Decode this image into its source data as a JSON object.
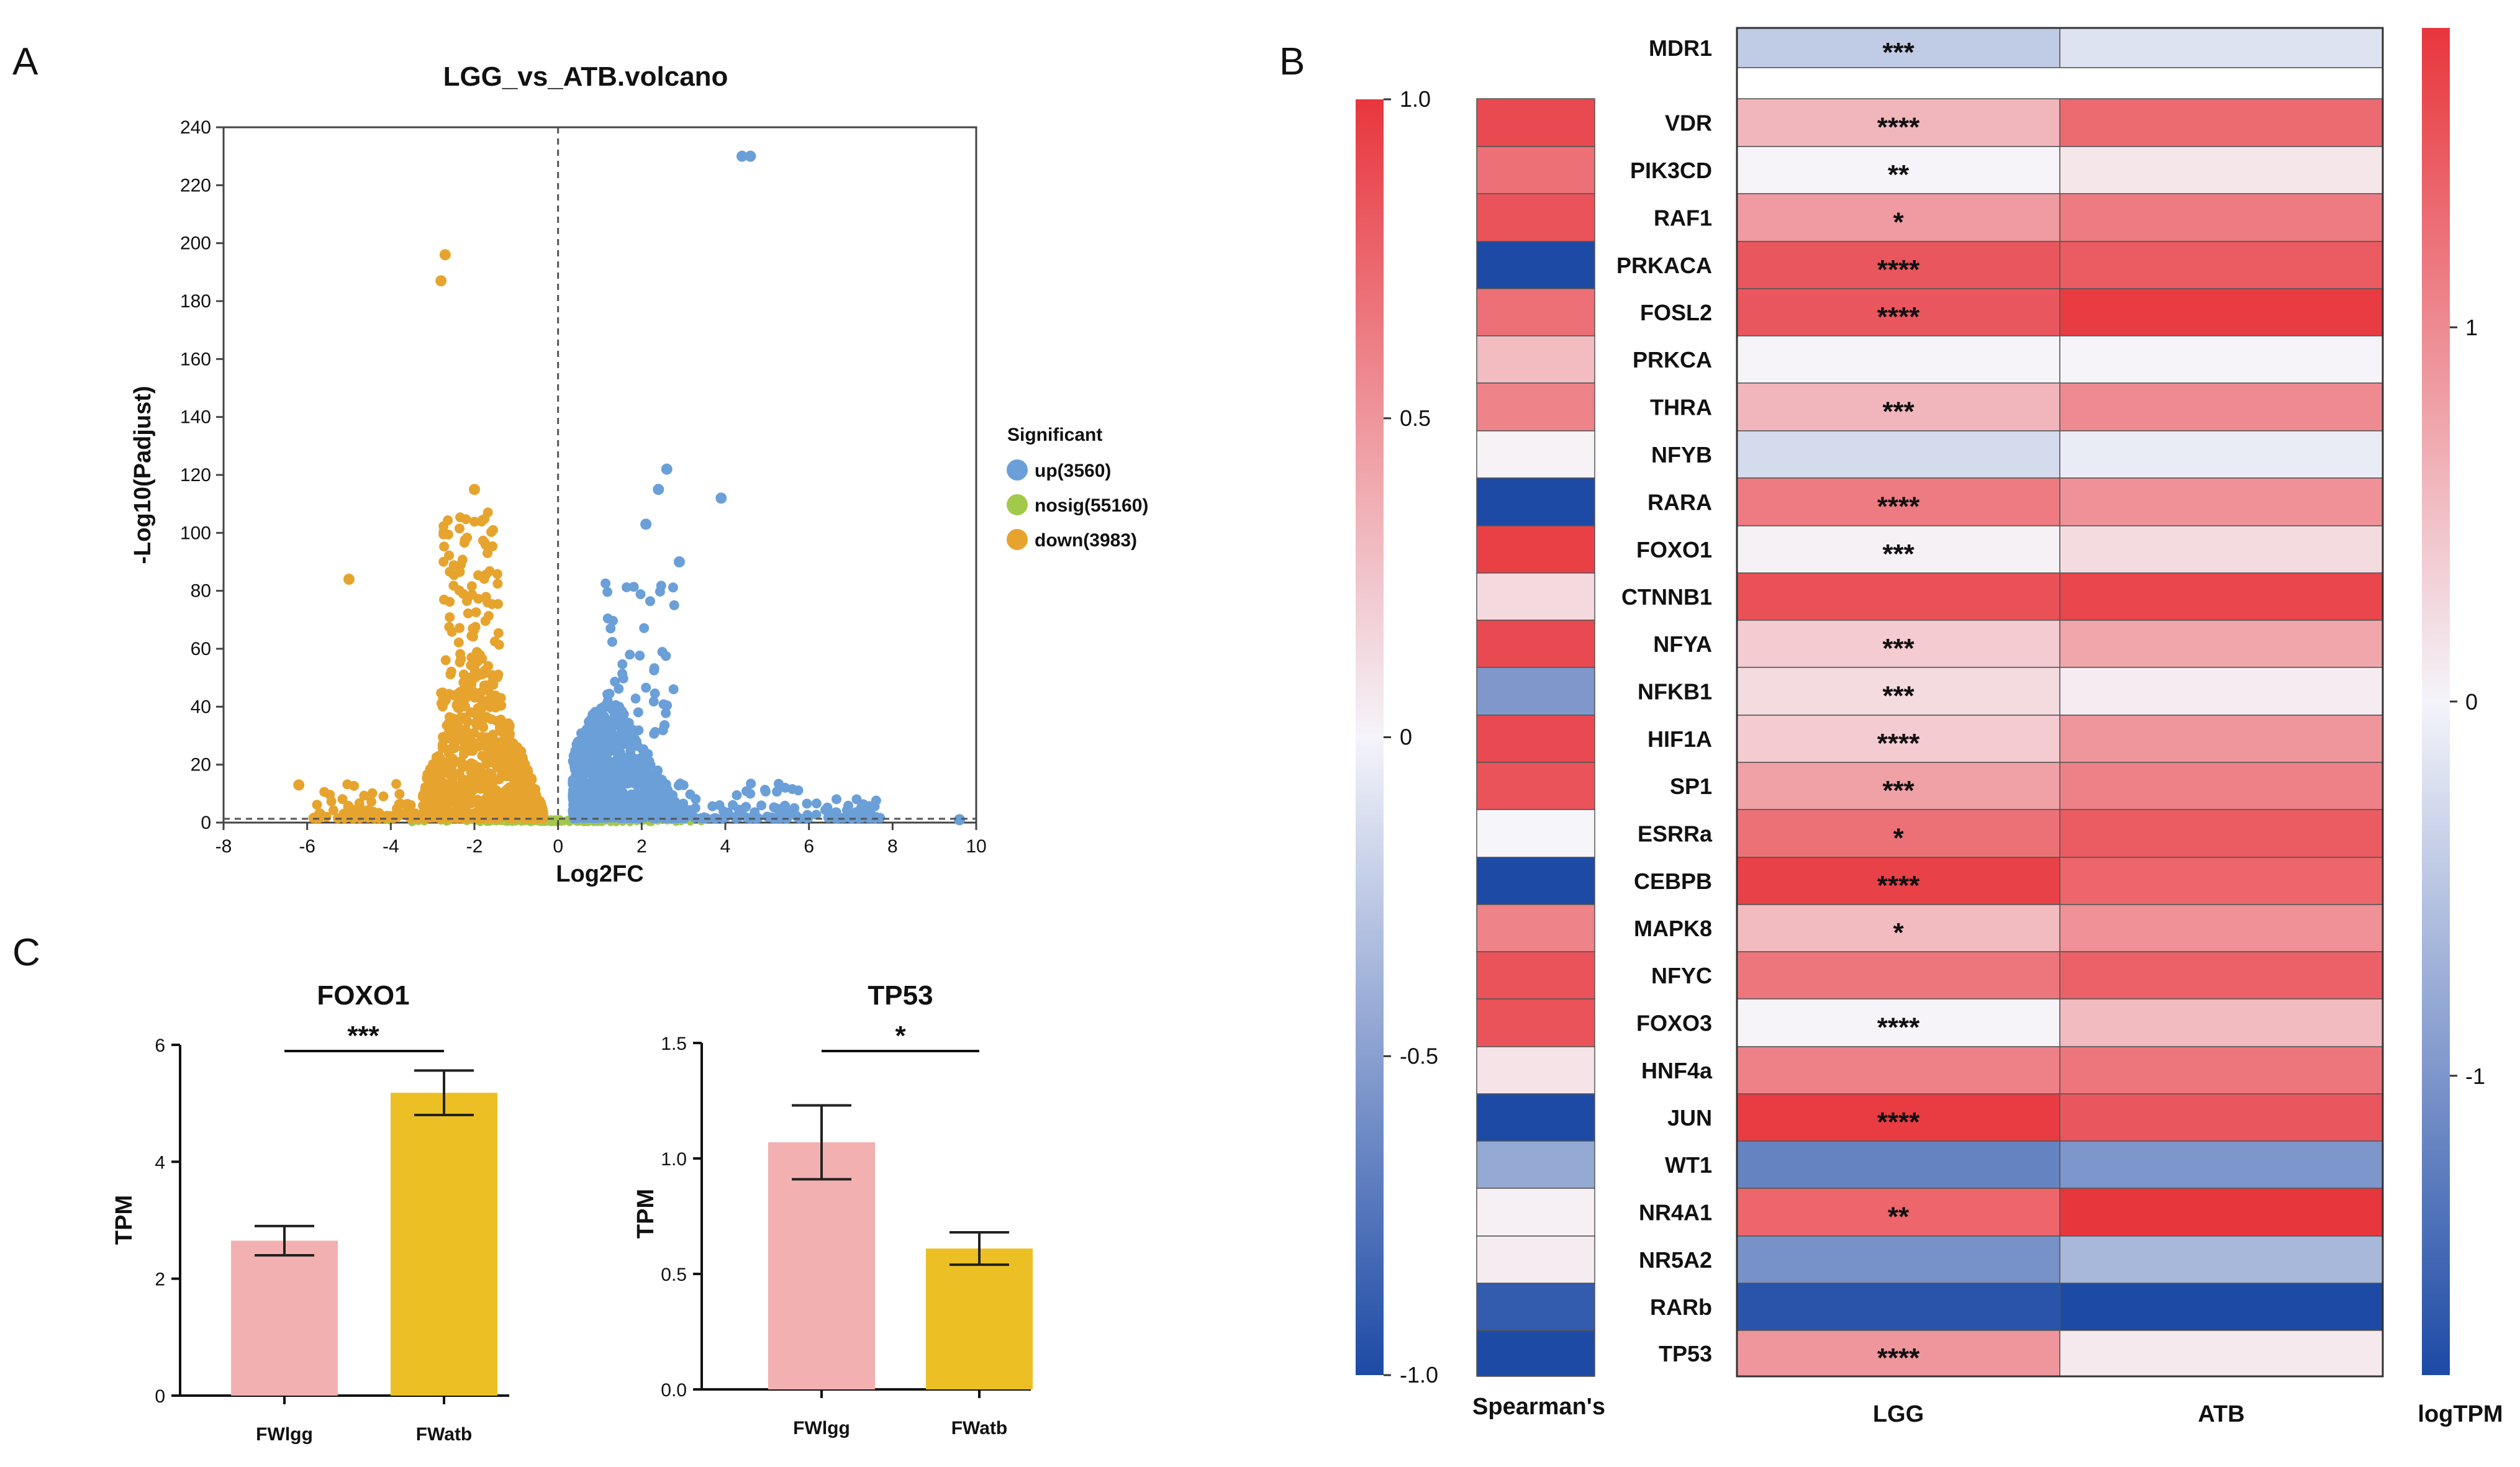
{
  "panels": {
    "a": "A",
    "b": "B",
    "c": "C"
  },
  "chart_data": [
    {
      "type": "scatter",
      "panel": "A",
      "title": "LGG_vs_ATB.volcano",
      "xlabel": "Log2FC",
      "ylabel": "-Log10(Padjust)",
      "xlim": [
        -8,
        10
      ],
      "ylim": [
        0,
        240
      ],
      "xticks": [
        -8,
        -6,
        -4,
        -2,
        0,
        2,
        4,
        6,
        8,
        10
      ],
      "yticks": [
        0,
        20,
        40,
        60,
        80,
        100,
        120,
        140,
        160,
        180,
        200,
        220,
        240
      ],
      "legend": {
        "title": "Significant",
        "position": "right",
        "items": [
          {
            "label": "up(3560)",
            "color": "#6b9fd8"
          },
          {
            "label": "nosig(55160)",
            "color": "#a3c94a"
          },
          {
            "label": "down(3983)",
            "color": "#e6a42e"
          }
        ]
      },
      "counts": {
        "up": 3560,
        "nosig": 55160,
        "down": 3983
      },
      "threshold_y": 1.3,
      "notable_points": {
        "up": [
          [
            4.4,
            230
          ],
          [
            4.6,
            230
          ],
          [
            2.6,
            122
          ],
          [
            2.4,
            115
          ],
          [
            3.9,
            112
          ],
          [
            2.1,
            103
          ],
          [
            2.9,
            90
          ],
          [
            9.6,
            1
          ]
        ],
        "down": [
          [
            -2.7,
            196
          ],
          [
            -2.8,
            187
          ],
          [
            -2.0,
            115
          ],
          [
            -5.0,
            84
          ],
          [
            -6.2,
            13
          ],
          [
            -5.7,
            3
          ]
        ]
      }
    },
    {
      "type": "heatmap",
      "panel": "B",
      "genes": [
        "MDR1",
        "VDR",
        "PIK3CD",
        "RAF1",
        "PRKACA",
        "FOSL2",
        "PRKCA",
        "THRA",
        "NFYB",
        "RARA",
        "FOXO1",
        "CTNNB1",
        "NFYA",
        "NFKB1",
        "HIF1A",
        "SP1",
        "ESRRa",
        "CEBPB",
        "MAPK8",
        "NFYC",
        "FOXO3",
        "HNF4a",
        "JUN",
        "WT1",
        "NR4A1",
        "NR5A2",
        "RARb",
        "TP53"
      ],
      "columns": [
        "LGG",
        "ATB"
      ],
      "spearman_label": "Spearman's",
      "spearman_values": [
        null,
        0.9,
        0.7,
        0.85,
        -1.0,
        0.7,
        0.3,
        0.6,
        0.02,
        -1.0,
        0.95,
        0.15,
        0.9,
        -0.55,
        0.9,
        0.85,
        0.0,
        -1.0,
        0.6,
        0.85,
        0.85,
        0.1,
        -1.0,
        -0.45,
        0.03,
        0.05,
        -0.9,
        -1.0
      ],
      "lgg_logtpm": [
        -0.45,
        0.6,
        0.02,
        0.85,
        1.5,
        1.5,
        0.02,
        0.6,
        -0.28,
        1.15,
        0.05,
        1.55,
        0.4,
        0.25,
        0.4,
        0.8,
        1.25,
        1.7,
        0.55,
        1.2,
        0.02,
        1.1,
        1.75,
        -1.2,
        1.35,
        -1.05,
        -1.7,
        0.9
      ],
      "atb_logtpm": [
        -0.2,
        1.3,
        0.15,
        1.15,
        1.45,
        1.75,
        0.02,
        1.0,
        -0.1,
        0.95,
        0.25,
        1.65,
        0.75,
        0.1,
        0.9,
        1.1,
        1.45,
        1.35,
        0.95,
        1.4,
        0.55,
        1.2,
        1.5,
        -1.0,
        1.8,
        -0.65,
        -1.8,
        0.12
      ],
      "significance": [
        "***",
        "****",
        "**",
        "*",
        "****",
        "****",
        "",
        "***",
        "",
        "****",
        "***",
        "",
        "***",
        "***",
        "****",
        "***",
        "*",
        "****",
        "*",
        "",
        "****",
        "",
        "****",
        "",
        "**",
        "",
        "",
        "****"
      ],
      "spearman_colorbar": {
        "ticks": [
          "1.0",
          "0.5",
          "0",
          "-0.5",
          "-1.0"
        ],
        "range": [
          -1.0,
          1.0
        ]
      },
      "logtpm_colorbar": {
        "label": "logTPM",
        "ticks": [
          "1",
          "0",
          "-1"
        ],
        "range": [
          -1.8,
          1.8
        ]
      }
    },
    {
      "type": "bar",
      "panel": "C1",
      "title": "FOXO1",
      "significance": "***",
      "categories": [
        "FWlgg",
        "FWatb"
      ],
      "values": [
        2.65,
        5.18
      ],
      "errors": [
        0.25,
        0.38
      ],
      "colors": [
        "#f3b0b0",
        "#ecc024"
      ],
      "ylabel": "TPM",
      "ylim": [
        0,
        6
      ],
      "yticks": [
        "0",
        "2",
        "4",
        "6"
      ]
    },
    {
      "type": "bar",
      "panel": "C2",
      "title": "TP53",
      "significance": "*",
      "categories": [
        "FWlgg",
        "FWatb"
      ],
      "values": [
        1.07,
        0.61
      ],
      "errors": [
        0.16,
        0.07
      ],
      "colors": [
        "#f3b0b0",
        "#ecc024"
      ],
      "ylabel": "TPM",
      "ylim": [
        0,
        1.5
      ],
      "yticks": [
        "0.0",
        "0.5",
        "1.0",
        "1.5"
      ]
    }
  ]
}
